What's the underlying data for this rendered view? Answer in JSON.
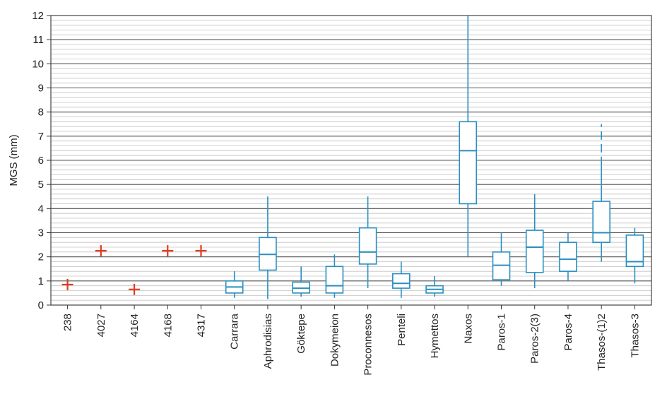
{
  "chart_data": {
    "type": "boxplot",
    "ylabel": "MGS (mm)",
    "ylim": [
      0,
      12
    ],
    "yticks": [
      0,
      1,
      2,
      3,
      4,
      5,
      6,
      7,
      8,
      9,
      10,
      11,
      12
    ],
    "grid": true,
    "categories": [
      "238",
      "4027",
      "4164",
      "4168",
      "4317",
      "Carrara",
      "Aphrodisias",
      "Göktepe",
      "Dokymeion",
      "Proconnesos",
      "Penteli",
      "Hymettos",
      "Naxos",
      "Paros-1",
      "Paros-2(3)",
      "Paros-4",
      "Thasos-(1)2",
      "Thasos-3"
    ],
    "samples": [
      {
        "name": "238",
        "value": 0.85
      },
      {
        "name": "4027",
        "value": 2.25
      },
      {
        "name": "4164",
        "value": 0.65
      },
      {
        "name": "4168",
        "value": 2.25
      },
      {
        "name": "4317",
        "value": 2.25
      }
    ],
    "boxes": [
      {
        "name": "Carrara",
        "min": 0.3,
        "q1": 0.5,
        "median": 0.75,
        "q3": 1.0,
        "max": 1.4
      },
      {
        "name": "Aphrodisias",
        "min": 0.25,
        "q1": 1.45,
        "median": 2.1,
        "q3": 2.8,
        "max": 4.5
      },
      {
        "name": "Göktepe",
        "min": 0.35,
        "q1": 0.5,
        "median": 0.7,
        "q3": 0.95,
        "max": 1.6
      },
      {
        "name": "Dokymeion",
        "min": 0.3,
        "q1": 0.5,
        "median": 0.8,
        "q3": 1.6,
        "max": 2.1
      },
      {
        "name": "Proconnesos",
        "min": 0.7,
        "q1": 1.7,
        "median": 2.2,
        "q3": 3.2,
        "max": 4.5
      },
      {
        "name": "Penteli",
        "min": 0.3,
        "q1": 0.7,
        "median": 0.9,
        "q3": 1.3,
        "max": 1.8
      },
      {
        "name": "Hymettos",
        "min": 0.35,
        "q1": 0.5,
        "median": 0.65,
        "q3": 0.8,
        "max": 1.2
      },
      {
        "name": "Naxos",
        "min": 2.0,
        "q1": 4.2,
        "median": 6.4,
        "q3": 7.6,
        "max": 12.0
      },
      {
        "name": "Paros-1",
        "min": 0.8,
        "q1": 1.05,
        "median": 1.65,
        "q3": 2.2,
        "max": 3.0
      },
      {
        "name": "Paros-2(3)",
        "min": 0.7,
        "q1": 1.35,
        "median": 2.4,
        "q3": 3.1,
        "max": 4.6
      },
      {
        "name": "Paros-4",
        "min": 1.0,
        "q1": 1.4,
        "median": 1.9,
        "q3": 2.6,
        "max": 3.0
      },
      {
        "name": "Thasos-(1)2",
        "min": 1.8,
        "q1": 2.6,
        "median": 3.0,
        "q3": 4.3,
        "max": 5.8,
        "dashed_max": 7.5
      },
      {
        "name": "Thasos-3",
        "min": 0.9,
        "q1": 1.6,
        "median": 1.8,
        "q3": 2.9,
        "max": 3.2
      }
    ],
    "colors": {
      "box": "#2a8fc0",
      "sample": "#e03a1e",
      "grid_major": "#555555",
      "grid_minor": "#c4c4c4"
    }
  }
}
